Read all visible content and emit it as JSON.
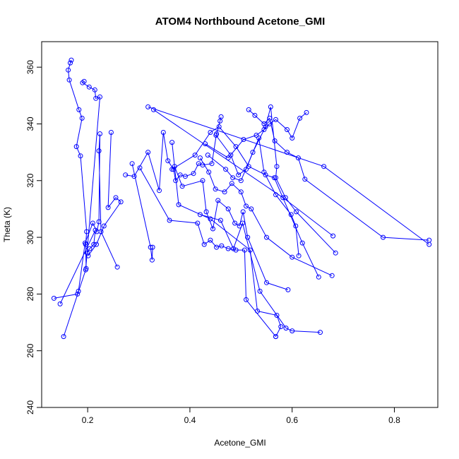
{
  "chart_data": {
    "type": "line",
    "title": "ATOM4 Northbound Acetone_GMI",
    "xlabel": "Acetone_GMI",
    "ylabel": "Theta (K)",
    "xlim": [
      0.11,
      0.885
    ],
    "ylim": [
      240,
      369
    ],
    "x_ticks": [
      0.2,
      0.4,
      0.6,
      0.8
    ],
    "y_ticks": [
      240,
      260,
      280,
      300,
      320,
      340,
      360
    ],
    "x_tick_labels": [
      "0.2",
      "0.4",
      "0.6",
      "0.8"
    ],
    "y_tick_labels": [
      "240",
      "260",
      "280",
      "300",
      "320",
      "340",
      "360"
    ],
    "grid": false,
    "line_color": "#0000ff",
    "marker": "open-circle",
    "series": [
      {
        "points": [
          [
            0.168,
            362.5
          ],
          [
            0.166,
            361.5
          ],
          [
            0.162,
            359
          ],
          [
            0.164,
            355.5
          ],
          [
            0.183,
            345
          ],
          [
            0.189,
            342
          ],
          [
            0.178,
            332
          ],
          [
            0.186,
            328.7
          ],
          [
            0.198,
            302
          ],
          [
            0.196,
            297.5
          ],
          [
            0.197,
            289
          ],
          [
            0.153,
            265
          ]
        ]
      },
      {
        "points": [
          [
            0.193,
            355
          ],
          [
            0.19,
            354.5
          ],
          [
            0.203,
            353
          ],
          [
            0.214,
            352
          ],
          [
            0.216,
            349
          ],
          [
            0.224,
            349.5
          ],
          [
            0.196,
            288.5
          ],
          [
            0.199,
            294.5
          ],
          [
            0.204,
            296
          ],
          [
            0.212,
            297.5
          ],
          [
            0.215,
            302.5
          ],
          [
            0.146,
            276.5
          ]
        ]
      },
      {
        "points": [
          [
            0.134,
            278.5
          ],
          [
            0.18,
            280
          ],
          [
            0.182,
            281
          ],
          [
            0.195,
            298
          ],
          [
            0.21,
            305
          ],
          [
            0.218,
            302
          ],
          [
            0.222,
            305.5
          ],
          [
            0.224,
            336.5
          ],
          [
            0.222,
            330.5
          ],
          [
            0.226,
            302
          ],
          [
            0.258,
            289.5
          ]
        ]
      },
      {
        "points": [
          [
            0.246,
            337
          ],
          [
            0.24,
            310.5
          ],
          [
            0.255,
            314
          ],
          [
            0.265,
            312.5
          ],
          [
            0.232,
            304
          ],
          [
            0.217,
            297.5
          ],
          [
            0.201,
            293.5
          ]
        ]
      },
      {
        "points": [
          [
            0.318,
            346
          ],
          [
            0.662,
            325
          ],
          [
            0.868,
            297.5
          ]
        ]
      },
      {
        "points": [
          [
            0.329,
            345
          ],
          [
            0.582,
            314
          ],
          [
            0.68,
            300.5
          ]
        ]
      },
      {
        "points": [
          [
            0.274,
            322
          ],
          [
            0.291,
            321.5
          ],
          [
            0.318,
            330
          ],
          [
            0.34,
            316.5
          ],
          [
            0.348,
            337
          ],
          [
            0.357,
            327
          ],
          [
            0.368,
            324
          ],
          [
            0.372,
            320
          ],
          [
            0.381,
            322
          ],
          [
            0.391,
            321.5
          ],
          [
            0.407,
            322.5
          ],
          [
            0.417,
            326
          ],
          [
            0.425,
            325.5
          ],
          [
            0.443,
            326
          ],
          [
            0.452,
            336.5
          ],
          [
            0.461,
            342.5
          ],
          [
            0.459,
            341
          ]
        ]
      },
      {
        "points": [
          [
            0.287,
            326
          ],
          [
            0.323,
            296.5
          ],
          [
            0.326,
            292
          ],
          [
            0.327,
            296.5
          ]
        ]
      },
      {
        "points": [
          [
            0.365,
            333.5
          ],
          [
            0.378,
            311.5
          ],
          [
            0.44,
            306.5
          ],
          [
            0.518,
            295.5
          ],
          [
            0.532,
            274
          ],
          [
            0.57,
            272.5
          ],
          [
            0.578,
            268.5
          ],
          [
            0.568,
            265
          ]
        ]
      },
      {
        "points": [
          [
            0.302,
            324.5
          ],
          [
            0.36,
            306
          ],
          [
            0.415,
            305
          ],
          [
            0.428,
            297.5
          ],
          [
            0.44,
            299
          ],
          [
            0.452,
            296.5
          ],
          [
            0.462,
            297
          ],
          [
            0.475,
            296
          ],
          [
            0.49,
            295.5
          ],
          [
            0.507,
            295.5
          ],
          [
            0.51,
            278
          ],
          [
            0.568,
            265
          ]
        ]
      },
      {
        "points": [
          [
            0.37,
            325
          ],
          [
            0.385,
            318
          ],
          [
            0.425,
            320
          ],
          [
            0.432,
            309
          ],
          [
            0.445,
            303
          ],
          [
            0.455,
            313
          ],
          [
            0.475,
            310
          ],
          [
            0.488,
            305
          ],
          [
            0.497,
            304
          ],
          [
            0.504,
            309
          ],
          [
            0.513,
            300
          ],
          [
            0.55,
            284
          ],
          [
            0.592,
            281.5
          ]
        ]
      },
      {
        "points": [
          [
            0.365,
            324
          ],
          [
            0.41,
            329
          ],
          [
            0.44,
            337
          ],
          [
            0.457,
            339
          ],
          [
            0.49,
            332
          ],
          [
            0.515,
            325
          ],
          [
            0.548,
            322
          ],
          [
            0.565,
            321
          ],
          [
            0.62,
            298
          ],
          [
            0.652,
            286
          ]
        ]
      },
      {
        "points": [
          [
            0.42,
            328
          ],
          [
            0.437,
            323
          ],
          [
            0.45,
            317
          ],
          [
            0.468,
            316
          ],
          [
            0.482,
            319
          ],
          [
            0.5,
            316
          ],
          [
            0.51,
            311
          ],
          [
            0.52,
            310
          ],
          [
            0.55,
            300
          ],
          [
            0.6,
            293
          ],
          [
            0.678,
            286.5
          ]
        ]
      },
      {
        "points": [
          [
            0.43,
            333
          ],
          [
            0.475,
            328
          ],
          [
            0.505,
            334.5
          ],
          [
            0.53,
            336
          ],
          [
            0.545,
            338
          ],
          [
            0.556,
            340
          ],
          [
            0.568,
            341.5
          ],
          [
            0.59,
            338
          ],
          [
            0.6,
            335
          ],
          [
            0.615,
            342
          ],
          [
            0.628,
            344
          ]
        ]
      },
      {
        "points": [
          [
            0.451,
            336
          ],
          [
            0.48,
            329
          ],
          [
            0.495,
            322
          ],
          [
            0.51,
            324
          ],
          [
            0.523,
            330
          ],
          [
            0.548,
            339
          ],
          [
            0.558,
            346
          ],
          [
            0.57,
            325
          ],
          [
            0.568,
            321
          ],
          [
            0.587,
            314
          ],
          [
            0.608,
            309
          ],
          [
            0.685,
            294.5
          ]
        ]
      },
      {
        "points": [
          [
            0.515,
            345
          ],
          [
            0.527,
            343
          ],
          [
            0.545,
            340
          ],
          [
            0.556,
            342
          ],
          [
            0.566,
            334
          ],
          [
            0.59,
            330
          ],
          [
            0.612,
            328
          ],
          [
            0.625,
            320.5
          ],
          [
            0.778,
            300
          ],
          [
            0.868,
            299
          ]
        ]
      },
      {
        "points": [
          [
            0.435,
            329
          ],
          [
            0.47,
            324
          ],
          [
            0.484,
            321
          ],
          [
            0.5,
            320
          ],
          [
            0.535,
            335
          ],
          [
            0.545,
            323
          ],
          [
            0.568,
            315
          ],
          [
            0.598,
            308
          ],
          [
            0.607,
            304
          ],
          [
            0.613,
            293.5
          ]
        ]
      },
      {
        "points": [
          [
            0.42,
            308
          ],
          [
            0.46,
            306
          ],
          [
            0.485,
            296
          ],
          [
            0.503,
            305
          ],
          [
            0.537,
            281
          ],
          [
            0.588,
            268
          ],
          [
            0.6,
            267
          ],
          [
            0.655,
            266.5
          ]
        ]
      }
    ]
  }
}
